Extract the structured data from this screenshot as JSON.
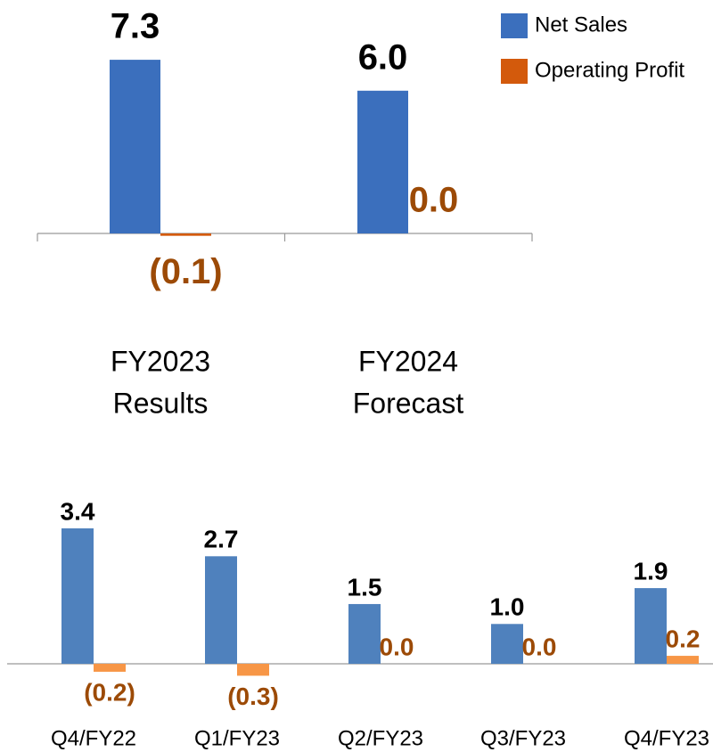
{
  "chart_data": [
    {
      "type": "bar",
      "categories": [
        [
          "FY2023",
          "Results"
        ],
        [
          "FY2024",
          "Forecast"
        ]
      ],
      "series": [
        {
          "name": "Net Sales",
          "color": "#3b6fbd",
          "label_color": "#000000",
          "values": [
            7.3,
            6.0
          ],
          "value_labels": [
            "7.3",
            "6.0"
          ]
        },
        {
          "name": "Operating Profit",
          "color": "#d35a0c",
          "label_color": "#9c4a06",
          "values": [
            -0.1,
            0.0
          ],
          "value_labels": [
            "(0.1)",
            "0.0"
          ]
        }
      ],
      "legend": "top-right"
    },
    {
      "type": "bar",
      "categories": [
        [
          "Q4/FY22"
        ],
        [
          "Q1/FY23"
        ],
        [
          "Q2/FY23"
        ],
        [
          "Q3/FY23"
        ],
        [
          "Q4/FY23"
        ]
      ],
      "series": [
        {
          "color": "#4f81bd",
          "label_color": "#000000",
          "values": [
            3.4,
            2.7,
            1.5,
            1.0,
            1.9
          ],
          "value_labels": [
            "3.4",
            "2.7",
            "1.5",
            "1.0",
            "1.9"
          ]
        },
        {
          "color": "#f79646",
          "label_color": "#9c4a06",
          "values": [
            -0.2,
            -0.3,
            0.0,
            0.0,
            0.2
          ],
          "value_labels": [
            "(0.2)",
            "(0.3)",
            "0.0",
            "0.0",
            "0.2"
          ]
        }
      ]
    }
  ]
}
